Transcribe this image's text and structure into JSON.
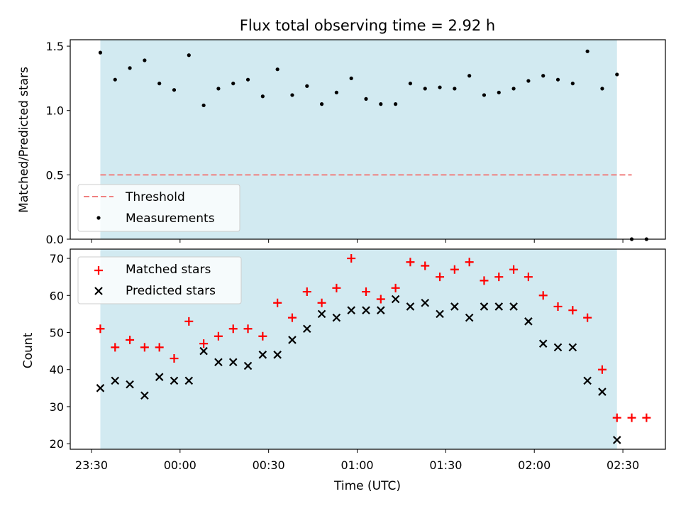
{
  "chart_data": [
    {
      "type": "scatter",
      "title": "Flux total observing time = 2.92 h",
      "xlabel": "",
      "ylabel": "Matched/Predicted stars",
      "ylim": [
        0,
        1.55
      ],
      "yticks": [
        0.0,
        0.5,
        1.0,
        1.5
      ],
      "ytick_labels": [
        "0.0",
        "0.5",
        "1.0",
        "1.5"
      ],
      "shaded_span": {
        "start": "23:33",
        "end": "02:28",
        "color": "#add8e6"
      },
      "threshold": {
        "name": "Threshold",
        "value": 0.5,
        "start": "23:33",
        "end": "02:33",
        "color": "#f08080"
      },
      "series": [
        {
          "name": "Measurements",
          "color": "#000000",
          "x": [
            "23:33",
            "23:38",
            "23:43",
            "23:48",
            "23:53",
            "23:58",
            "00:03",
            "00:08",
            "00:13",
            "00:18",
            "00:23",
            "00:28",
            "00:33",
            "00:38",
            "00:43",
            "00:48",
            "00:53",
            "00:58",
            "01:03",
            "01:08",
            "01:13",
            "01:18",
            "01:23",
            "01:28",
            "01:33",
            "01:38",
            "01:43",
            "01:48",
            "01:53",
            "01:58",
            "02:03",
            "02:08",
            "02:13",
            "02:18",
            "02:23",
            "02:28",
            "02:33",
            "02:38"
          ],
          "y": [
            1.45,
            1.24,
            1.33,
            1.39,
            1.21,
            1.16,
            1.43,
            1.04,
            1.17,
            1.21,
            1.24,
            1.11,
            1.32,
            1.12,
            1.19,
            1.05,
            1.14,
            1.25,
            1.09,
            1.05,
            1.05,
            1.21,
            1.17,
            1.18,
            1.17,
            1.27,
            1.12,
            1.14,
            1.17,
            1.23,
            1.27,
            1.24,
            1.21,
            1.46,
            1.17,
            1.28,
            0.0,
            0.0
          ]
        }
      ],
      "legend": {
        "placement": "lower-left",
        "entries": [
          "Threshold",
          "Measurements"
        ]
      }
    },
    {
      "type": "scatter",
      "title": "",
      "xlabel": "Time (UTC)",
      "ylabel": "Count",
      "ylim": [
        18.5,
        72.5
      ],
      "yticks": [
        20,
        30,
        40,
        50,
        60,
        70
      ],
      "ytick_labels": [
        "20",
        "30",
        "40",
        "50",
        "60",
        "70"
      ],
      "xticks": [
        "23:30",
        "00:00",
        "00:30",
        "01:00",
        "01:30",
        "02:00",
        "02:30"
      ],
      "shaded_span": {
        "start": "23:33",
        "end": "02:28",
        "color": "#add8e6"
      },
      "series": [
        {
          "name": "Matched stars",
          "marker": "+",
          "color": "#ff0000",
          "x": [
            "23:33",
            "23:38",
            "23:43",
            "23:48",
            "23:53",
            "23:58",
            "00:03",
            "00:08",
            "00:13",
            "00:18",
            "00:23",
            "00:28",
            "00:33",
            "00:38",
            "00:43",
            "00:48",
            "00:53",
            "00:58",
            "01:03",
            "01:08",
            "01:13",
            "01:18",
            "01:23",
            "01:28",
            "01:33",
            "01:38",
            "01:43",
            "01:48",
            "01:53",
            "01:58",
            "02:03",
            "02:08",
            "02:13",
            "02:18",
            "02:23",
            "02:28",
            "02:33",
            "02:38"
          ],
          "y": [
            51,
            46,
            48,
            46,
            46,
            43,
            53,
            47,
            49,
            51,
            51,
            49,
            58,
            54,
            61,
            58,
            62,
            70,
            61,
            59,
            62,
            69,
            68,
            65,
            67,
            69,
            64,
            65,
            67,
            65,
            60,
            57,
            56,
            54,
            40,
            27,
            27,
            27
          ]
        },
        {
          "name": "Predicted stars",
          "marker": "x",
          "color": "#000000",
          "x": [
            "23:33",
            "23:38",
            "23:43",
            "23:48",
            "23:53",
            "23:58",
            "00:03",
            "00:08",
            "00:13",
            "00:18",
            "00:23",
            "00:28",
            "00:33",
            "00:38",
            "00:43",
            "00:48",
            "00:53",
            "00:58",
            "01:03",
            "01:08",
            "01:13",
            "01:18",
            "01:23",
            "01:28",
            "01:33",
            "01:38",
            "01:43",
            "01:48",
            "01:53",
            "01:58",
            "02:03",
            "02:08",
            "02:13",
            "02:18",
            "02:23",
            "02:28"
          ],
          "y": [
            35,
            37,
            36,
            33,
            38,
            37,
            37,
            45,
            42,
            42,
            41,
            44,
            44,
            48,
            51,
            55,
            54,
            56,
            56,
            56,
            59,
            57,
            58,
            55,
            57,
            54,
            57,
            57,
            57,
            53,
            47,
            46,
            46,
            37,
            34,
            21
          ]
        }
      ],
      "legend": {
        "placement": "upper-left",
        "entries": [
          "Matched stars",
          "Predicted stars"
        ]
      }
    }
  ]
}
